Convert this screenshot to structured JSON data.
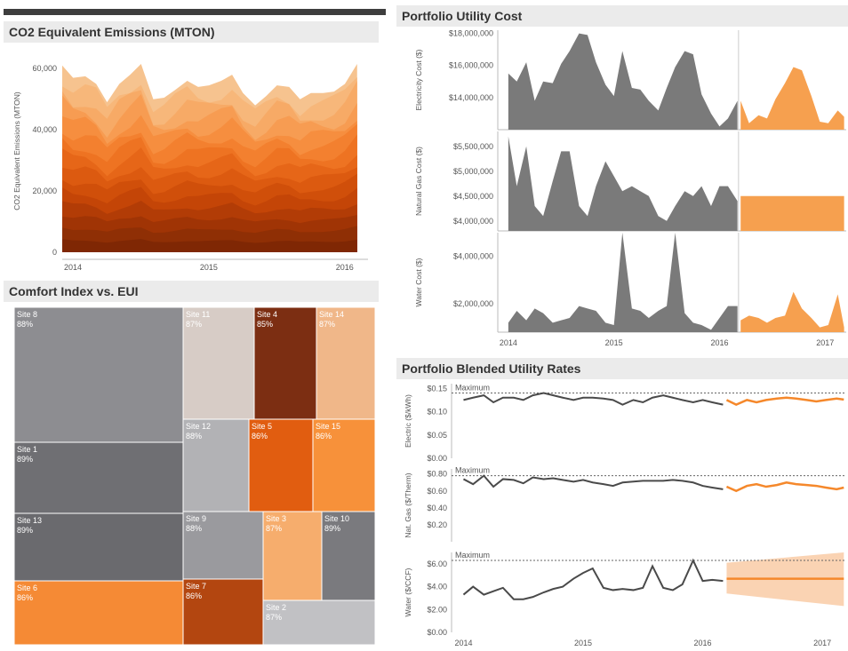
{
  "titles": {
    "co2": "CO2 Equivalent Emissions (MTON)",
    "comfort": "Comfort Index vs. EUI",
    "cost": "Portfolio Utility Cost",
    "rates": "Portfolio Blended Utility Rates"
  },
  "colors": {
    "gray": "#7a7a7a",
    "orange": "#f6a04f",
    "orange_line": "#f5882b"
  },
  "chart_data": [
    {
      "type": "area",
      "title": "CO2 Equivalent Emissions (MTON)",
      "ylabel": "CO2 Equivalent Emissions (MTON)",
      "ylim": [
        0,
        65000
      ],
      "yticks": [
        "0",
        "20,000",
        "40,000",
        "60,000"
      ],
      "xticks": [
        "2014",
        "2015",
        "2016"
      ],
      "xlim": [
        2014.0,
        2016.25
      ],
      "x": [
        2014.0,
        2014.08,
        2014.17,
        2014.25,
        2014.33,
        2014.42,
        2014.5,
        2014.58,
        2014.67,
        2014.75,
        2014.83,
        2014.92,
        2015.0,
        2015.08,
        2015.17,
        2015.25,
        2015.33,
        2015.42,
        2015.5,
        2015.58,
        2015.67,
        2015.75,
        2015.83,
        2015.92,
        2016.0,
        2016.08,
        2016.17
      ],
      "total": [
        61000,
        57000,
        57500,
        55000,
        49000,
        55000,
        58000,
        61500,
        50000,
        50500,
        53000,
        56000,
        54000,
        54500,
        56000,
        58000,
        52000,
        48000,
        51000,
        54500,
        54000,
        50000,
        52000,
        52000,
        52500,
        55000,
        61500
      ],
      "layer_count": 15,
      "layer_colors": [
        "#7f2704",
        "#8f2f05",
        "#a03405",
        "#b23c06",
        "#c44507",
        "#d04f0a",
        "#dc5a10",
        "#e66618",
        "#ee7322",
        "#f3802f",
        "#f68e3f",
        "#f79c52",
        "#f7aa66",
        "#f7b77a",
        "#f6c38f"
      ]
    },
    {
      "type": "treemap",
      "title": "Comfort Index vs. EUI",
      "items": [
        {
          "site": "Site 8",
          "value": "88%",
          "color": "#8d8d91",
          "text_color": "#ffffff"
        },
        {
          "site": "Site 11",
          "value": "87%",
          "color": "#d7ccc6",
          "text_color": "#ffffff"
        },
        {
          "site": "Site 4",
          "value": "85%",
          "color": "#7c2e12",
          "text_color": "#ffffff"
        },
        {
          "site": "Site 14",
          "value": "87%",
          "color": "#f0b789",
          "text_color": "#ffffff"
        },
        {
          "site": "Site 1",
          "value": "89%",
          "color": "#6f6f73",
          "text_color": "#ffffff"
        },
        {
          "site": "Site 12",
          "value": "88%",
          "color": "#b2b2b5",
          "text_color": "#ffffff"
        },
        {
          "site": "Site 5",
          "value": "86%",
          "color": "#e15d10",
          "text_color": "#ffffff"
        },
        {
          "site": "Site 15",
          "value": "86%",
          "color": "#f7913a",
          "text_color": "#ffffff"
        },
        {
          "site": "Site 13",
          "value": "89%",
          "color": "#6a6a6e",
          "text_color": "#ffffff"
        },
        {
          "site": "Site 9",
          "value": "88%",
          "color": "#9a9a9e",
          "text_color": "#ffffff"
        },
        {
          "site": "Site 3",
          "value": "87%",
          "color": "#f6ad6d",
          "text_color": "#ffffff"
        },
        {
          "site": "Site 10",
          "value": "89%",
          "color": "#7a7a7e",
          "text_color": "#ffffff"
        },
        {
          "site": "Site 6",
          "value": "86%",
          "color": "#f58a35",
          "text_color": "#ffffff"
        },
        {
          "site": "Site 7",
          "value": "86%",
          "color": "#b34610",
          "text_color": "#ffffff"
        },
        {
          "site": "Site 2",
          "value": "87%",
          "color": "#c1c1c4",
          "text_color": "#ffffff"
        }
      ]
    },
    {
      "type": "area",
      "title": "Portfolio Utility Cost",
      "xticks": [
        "2014",
        "2015",
        "2016",
        "2017"
      ],
      "xlim": [
        2013.9,
        2017.2
      ],
      "panels": [
        {
          "ylabel": "Electricity Cost ($)",
          "ylim": [
            12000000,
            18200000
          ],
          "yticks": [
            "$14,000,000",
            "$16,000,000",
            "$18,000,000"
          ],
          "ytick_values": [
            14000000,
            16000000,
            18000000
          ],
          "actual": {
            "x": [
              2014.0,
              2014.08,
              2014.17,
              2014.25,
              2014.33,
              2014.42,
              2014.5,
              2014.58,
              2014.67,
              2014.75,
              2014.83,
              2014.92,
              2015.0,
              2015.08,
              2015.17,
              2015.25,
              2015.33,
              2015.42,
              2015.5,
              2015.58,
              2015.67,
              2015.75,
              2015.83,
              2015.92,
              2016.0,
              2016.08,
              2016.17
            ],
            "y": [
              15500000,
              15000000,
              16200000,
              13800000,
              15000000,
              14900000,
              16100000,
              16900000,
              18000000,
              17900000,
              16200000,
              14800000,
              14100000,
              16900000,
              14600000,
              14500000,
              13800000,
              13200000,
              14600000,
              15900000,
              16900000,
              16700000,
              14200000,
              13000000,
              12200000,
              12700000,
              13800000
            ]
          },
          "forecast": {
            "x": [
              2016.2,
              2016.28,
              2016.37,
              2016.45,
              2016.53,
              2016.62,
              2016.7,
              2016.78,
              2016.87,
              2016.95,
              2017.03,
              2017.12,
              2017.18
            ],
            "y": [
              13800000,
              12400000,
              12900000,
              12700000,
              13900000,
              14900000,
              15900000,
              15700000,
              14100000,
              12500000,
              12400000,
              13200000,
              12800000
            ]
          }
        },
        {
          "ylabel": "Natural Gas Cost ($)",
          "ylim": [
            3800000,
            5800000
          ],
          "yticks": [
            "$4,000,000",
            "$4,500,000",
            "$5,000,000",
            "$5,500,000"
          ],
          "ytick_values": [
            4000000,
            4500000,
            5000000,
            5500000
          ],
          "actual": {
            "x": [
              2014.0,
              2014.08,
              2014.17,
              2014.25,
              2014.33,
              2014.42,
              2014.5,
              2014.58,
              2014.67,
              2014.75,
              2014.83,
              2014.92,
              2015.0,
              2015.08,
              2015.17,
              2015.25,
              2015.33,
              2015.42,
              2015.5,
              2015.58,
              2015.67,
              2015.75,
              2015.83,
              2015.92,
              2016.0,
              2016.08,
              2016.17
            ],
            "y": [
              5700000,
              4700000,
              5500000,
              4300000,
              4100000,
              4800000,
              5400000,
              5400000,
              4300000,
              4100000,
              4700000,
              5200000,
              4900000,
              4600000,
              4700000,
              4600000,
              4500000,
              4100000,
              4000000,
              4300000,
              4600000,
              4500000,
              4700000,
              4300000,
              4700000,
              4700000,
              4400000
            ]
          },
          "forecast": {
            "x": [
              2016.2,
              2017.18
            ],
            "y": [
              4500000,
              4500000
            ]
          }
        },
        {
          "ylabel": "Water Cost ($)",
          "ylim": [
            800000,
            5000000
          ],
          "yticks": [
            "$2,000,000",
            "$4,000,000"
          ],
          "ytick_values": [
            2000000,
            4000000
          ],
          "actual": {
            "x": [
              2014.0,
              2014.08,
              2014.17,
              2014.25,
              2014.33,
              2014.42,
              2014.5,
              2014.58,
              2014.67,
              2014.75,
              2014.83,
              2014.92,
              2015.0,
              2015.08,
              2015.17,
              2015.25,
              2015.33,
              2015.42,
              2015.5,
              2015.58,
              2015.67,
              2015.75,
              2015.83,
              2015.92,
              2016.0,
              2016.08,
              2016.17
            ],
            "y": [
              1200000,
              1700000,
              1300000,
              1800000,
              1600000,
              1200000,
              1300000,
              1400000,
              1900000,
              1800000,
              1700000,
              1200000,
              1100000,
              5000000,
              1800000,
              1700000,
              1400000,
              1700000,
              1900000,
              5000000,
              1600000,
              1200000,
              1100000,
              900000,
              1400000,
              1900000,
              1900000
            ]
          },
          "forecast": {
            "x": [
              2016.2,
              2016.28,
              2016.37,
              2016.45,
              2016.53,
              2016.62,
              2016.7,
              2016.78,
              2016.87,
              2016.95,
              2017.03,
              2017.12,
              2017.18
            ],
            "y": [
              1300000,
              1500000,
              1400000,
              1200000,
              1400000,
              1500000,
              2500000,
              1800000,
              1400000,
              1000000,
              1100000,
              2400000,
              1000000
            ]
          }
        }
      ]
    },
    {
      "type": "line",
      "title": "Portfolio Blended Utility Rates",
      "xticks": [
        "2014",
        "2015",
        "2016",
        "2017"
      ],
      "xlim": [
        2013.9,
        2017.2
      ],
      "reference_label": "Maximum",
      "panels": [
        {
          "ylabel": "Electric ($/kWh)",
          "ylim": [
            0,
            0.16
          ],
          "yticks": [
            "$0.00",
            "$0.05",
            "$0.10",
            "$0.15"
          ],
          "ytick_values": [
            0,
            0.05,
            0.1,
            0.15
          ],
          "maximum": 0.14,
          "actual": {
            "x": [
              2014.0,
              2014.08,
              2014.17,
              2014.25,
              2014.33,
              2014.42,
              2014.5,
              2014.58,
              2014.67,
              2014.75,
              2014.83,
              2014.92,
              2015.0,
              2015.08,
              2015.17,
              2015.25,
              2015.33,
              2015.42,
              2015.5,
              2015.58,
              2015.67,
              2015.75,
              2015.83,
              2015.92,
              2016.0,
              2016.08,
              2016.17
            ],
            "y": [
              0.125,
              0.13,
              0.135,
              0.12,
              0.13,
              0.13,
              0.125,
              0.135,
              0.14,
              0.135,
              0.13,
              0.125,
              0.13,
              0.13,
              0.128,
              0.125,
              0.115,
              0.125,
              0.12,
              0.13,
              0.135,
              0.13,
              0.125,
              0.12,
              0.125,
              0.12,
              0.115
            ]
          },
          "forecast": {
            "x": [
              2016.2,
              2016.28,
              2016.37,
              2016.45,
              2016.53,
              2016.62,
              2016.7,
              2016.78,
              2016.87,
              2016.95,
              2017.03,
              2017.12,
              2017.18
            ],
            "y": [
              0.125,
              0.115,
              0.125,
              0.12,
              0.125,
              0.128,
              0.13,
              0.128,
              0.125,
              0.122,
              0.125,
              0.128,
              0.126
            ]
          }
        },
        {
          "ylabel": "Nat. Gas ($/Therm)",
          "ylim": [
            0,
            0.86
          ],
          "yticks": [
            "$0.20",
            "$0.40",
            "$0.60",
            "$0.80"
          ],
          "ytick_values": [
            0.2,
            0.4,
            0.6,
            0.8
          ],
          "maximum": 0.78,
          "actual": {
            "x": [
              2014.0,
              2014.08,
              2014.17,
              2014.25,
              2014.33,
              2014.42,
              2014.5,
              2014.58,
              2014.67,
              2014.75,
              2014.83,
              2014.92,
              2015.0,
              2015.08,
              2015.17,
              2015.25,
              2015.33,
              2015.42,
              2015.5,
              2015.58,
              2015.67,
              2015.75,
              2015.83,
              2015.92,
              2016.0,
              2016.08,
              2016.17
            ],
            "y": [
              0.74,
              0.68,
              0.78,
              0.65,
              0.74,
              0.73,
              0.69,
              0.76,
              0.74,
              0.75,
              0.73,
              0.71,
              0.73,
              0.7,
              0.68,
              0.66,
              0.7,
              0.71,
              0.72,
              0.72,
              0.72,
              0.73,
              0.72,
              0.7,
              0.66,
              0.64,
              0.62
            ]
          },
          "forecast": {
            "x": [
              2016.2,
              2016.28,
              2016.37,
              2016.45,
              2016.53,
              2016.62,
              2016.7,
              2016.78,
              2016.87,
              2016.95,
              2017.03,
              2017.12,
              2017.18
            ],
            "y": [
              0.65,
              0.6,
              0.66,
              0.68,
              0.65,
              0.67,
              0.7,
              0.68,
              0.67,
              0.66,
              0.64,
              0.62,
              0.64
            ]
          }
        },
        {
          "ylabel": "Water ($/CCF)",
          "ylim": [
            0,
            7
          ],
          "yticks": [
            "$0.00",
            "$2.00",
            "$4.00",
            "$6.00"
          ],
          "ytick_values": [
            0,
            2,
            4,
            6
          ],
          "maximum": 6.3,
          "actual": {
            "x": [
              2014.0,
              2014.08,
              2014.17,
              2014.25,
              2014.33,
              2014.42,
              2014.5,
              2014.58,
              2014.67,
              2014.75,
              2014.83,
              2014.92,
              2015.0,
              2015.08,
              2015.17,
              2015.25,
              2015.33,
              2015.42,
              2015.5,
              2015.58,
              2015.67,
              2015.75,
              2015.83,
              2015.92,
              2016.0,
              2016.08,
              2016.17
            ],
            "y": [
              3.3,
              4.0,
              3.3,
              3.6,
              3.9,
              2.9,
              2.9,
              3.1,
              3.5,
              3.8,
              4.0,
              4.7,
              5.2,
              5.6,
              3.9,
              3.7,
              3.8,
              3.7,
              3.9,
              5.8,
              3.9,
              3.7,
              4.2,
              6.3,
              4.5,
              4.6,
              4.5
            ]
          },
          "forecast": {
            "x": [
              2016.2,
              2017.18
            ],
            "y": [
              4.7,
              4.7
            ]
          },
          "band": {
            "x": [
              2016.2,
              2017.18
            ],
            "low": [
              3.4,
              2.3
            ],
            "high": [
              6.1,
              7.0
            ]
          }
        }
      ]
    }
  ]
}
